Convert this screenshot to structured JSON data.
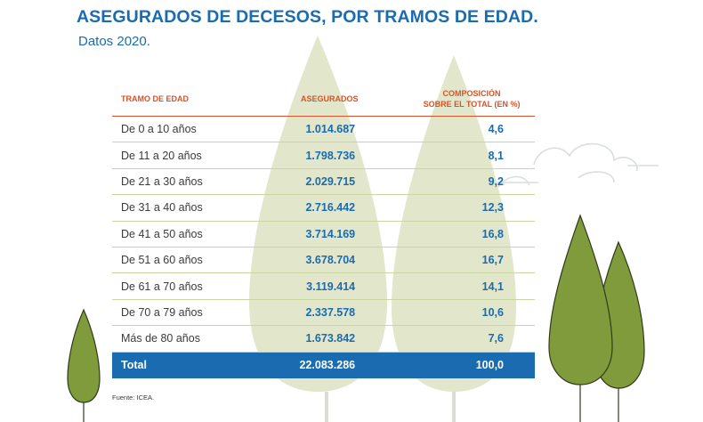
{
  "title": "ASEGURADOS DE DECESOS, POR TRAMOS DE EDAD.",
  "subtitle": "Datos 2020.",
  "table": {
    "headers": {
      "age_range": "TRAMO DE EDAD",
      "insured": "ASEGURADOS",
      "composition_line1": "COMPOSICIÓN",
      "composition_line2": "SOBRE EL TOTAL (EN %)"
    },
    "rows": [
      {
        "range": "De 0 a 10 años",
        "insured": "1.014.687",
        "pct": "4,6"
      },
      {
        "range": "De 11 a 20 años",
        "insured": "1.798.736",
        "pct": "8,1"
      },
      {
        "range": "De 21 a 30 años",
        "insured": "2.029.715",
        "pct": "9,2"
      },
      {
        "range": "De 31 a 40 años",
        "insured": "2.716.442",
        "pct": "12,3"
      },
      {
        "range": "De 41 a 50 años",
        "insured": "3.714.169",
        "pct": "16,8"
      },
      {
        "range": "De 51 a 60 años",
        "insured": "3.678.704",
        "pct": "16,7"
      },
      {
        "range": "De 61 a 70 años",
        "insured": "3.119.414",
        "pct": "14,1"
      },
      {
        "range": "De 70 a 79 años",
        "insured": "2.337.578",
        "pct": "10,6"
      },
      {
        "range": "Más de 80 años",
        "insured": "1.673.842",
        "pct": "7,6"
      }
    ],
    "total": {
      "label": "Total",
      "insured": "22.083.286",
      "pct": "100,0"
    }
  },
  "source": "Fuente: ICEA.",
  "colors": {
    "brand_blue": "#1a6bb0",
    "header_orange": "#d4542a",
    "tree_pale": "#dfe3c4",
    "tree_green": "#7f9b3c"
  }
}
